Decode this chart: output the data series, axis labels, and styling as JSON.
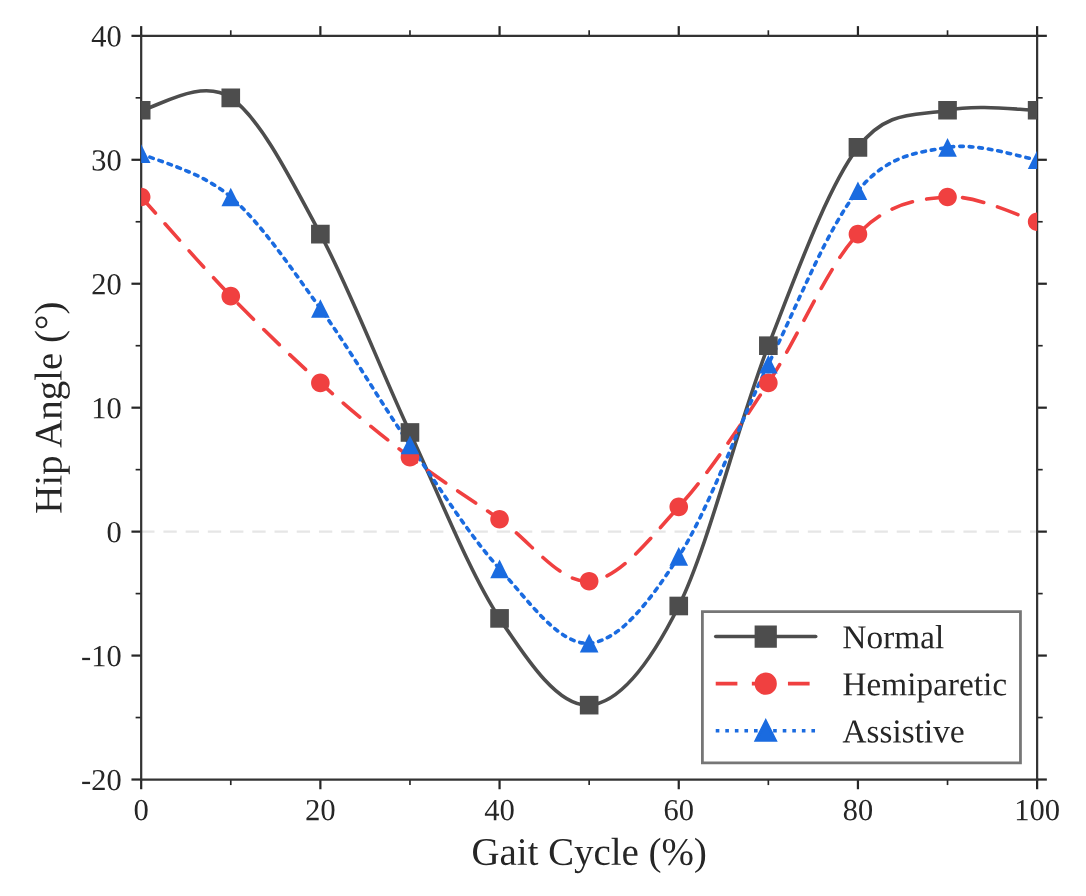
{
  "chart_data": {
    "type": "line",
    "xlabel": "Gait Cycle (%)",
    "ylabel": "Hip Angle (°)",
    "x": [
      0,
      10,
      20,
      30,
      40,
      50,
      60,
      70,
      80,
      90,
      100
    ],
    "series": [
      {
        "name": "Normal",
        "color": "#4d4d4d",
        "marker": "square",
        "line_style": "solid",
        "values": [
          34,
          35,
          24,
          8,
          -7,
          -14,
          -6,
          15,
          31,
          34,
          34
        ]
      },
      {
        "name": "Hemiparetic",
        "color": "#f04040",
        "marker": "circle",
        "line_style": "dashed",
        "values": [
          27,
          19,
          12,
          6,
          1,
          -4,
          2,
          12,
          24,
          27,
          25
        ]
      },
      {
        "name": "Assistive",
        "color": "#1a6be0",
        "marker": "triangle",
        "line_style": "dotted",
        "values": [
          30.5,
          27,
          18,
          7,
          -3,
          -9,
          -2,
          13.5,
          27.5,
          31,
          30
        ]
      }
    ],
    "xlim": [
      0,
      100
    ],
    "xticks": [
      0,
      20,
      40,
      60,
      80,
      100
    ],
    "ylim": [
      -20,
      40
    ],
    "yticks": [
      -20,
      -10,
      0,
      10,
      20,
      30,
      40
    ],
    "ref_lines": [
      {
        "axis": "y",
        "value": 0,
        "color": "#e6e6e6",
        "line_style": "dashed"
      }
    ],
    "grid": false,
    "legend": "bottom right"
  }
}
